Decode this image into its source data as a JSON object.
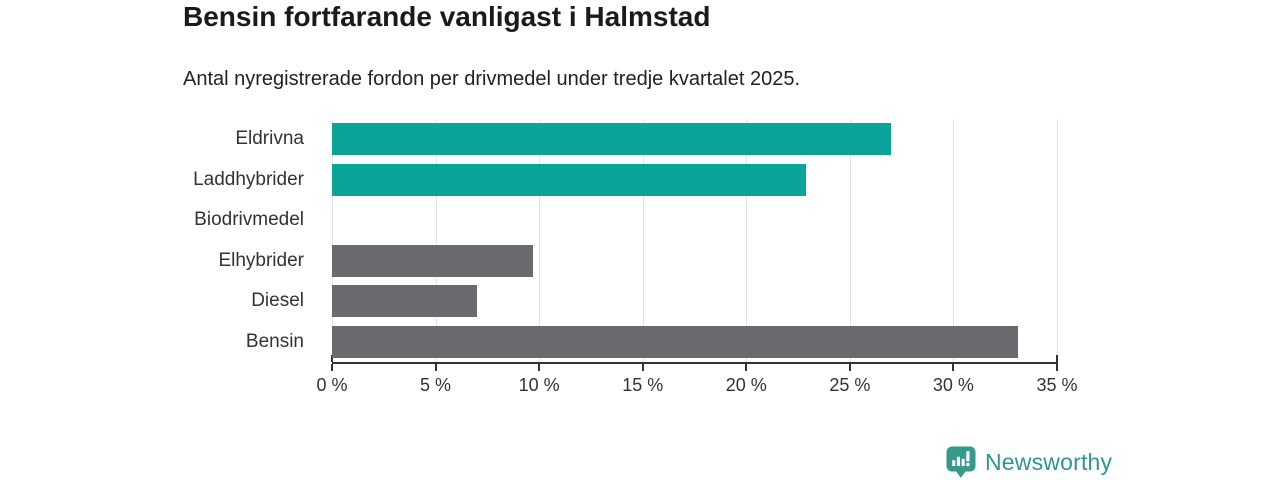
{
  "title": "Bensin fortfarande vanligast i Halmstad",
  "subtitle": "Antal nyregistrerade fordon per drivmedel under tredje kvartalet 2025.",
  "chart_data": {
    "type": "bar",
    "orientation": "horizontal",
    "categories": [
      "Eldrivna",
      "Laddhybrider",
      "Biodrivmedel",
      "Elhybrider",
      "Diesel",
      "Bensin"
    ],
    "values": [
      27,
      22.9,
      0,
      9.7,
      7,
      33.1
    ],
    "unit": "%",
    "bar_colors": [
      "#0aa49a",
      "#0aa49a",
      "#69696e",
      "#69696e",
      "#69696e",
      "#69696e"
    ],
    "xlim": [
      0,
      35
    ],
    "x_ticks": [
      "0 %",
      "5 %",
      "10 %",
      "15 %",
      "20 %",
      "25 %",
      "30 %",
      "35 %"
    ],
    "grid": true,
    "legend": "none",
    "title": "Bensin fortfarande vanligast i Halmstad",
    "xlabel": "",
    "ylabel": ""
  },
  "colors": {
    "teal_bar": "#0aa49a",
    "gray_bar": "#69696e",
    "axis": "#333333",
    "gridline": "#e3e3e3",
    "title_text": "#1a1a1a",
    "body_text": "#333333",
    "logo_teal": "#35998c"
  },
  "branding": {
    "logo_text": "Newsworthy",
    "logo_icon": "newsworthy-pin-bar-chart-icon"
  }
}
